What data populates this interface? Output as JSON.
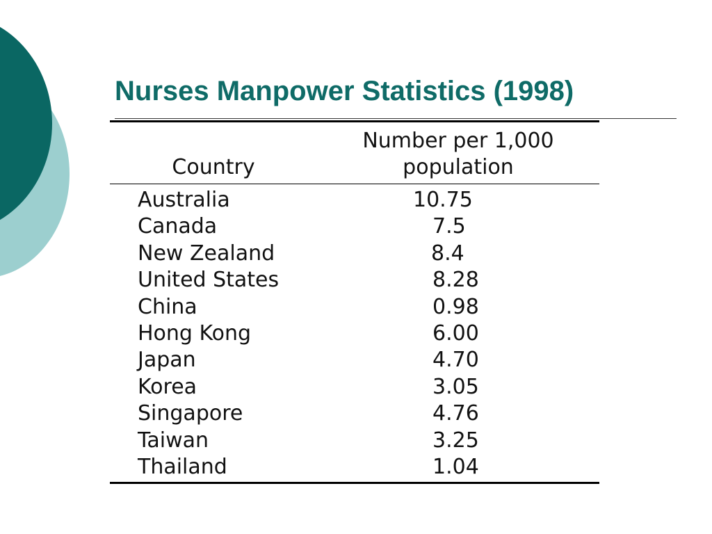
{
  "slide": {
    "title": "Nurses Manpower Statistics (1998)"
  },
  "table": {
    "headers": {
      "country": "Country",
      "value_line1": "Number per 1,000",
      "value_line2": "population"
    },
    "rows": [
      {
        "country": "Australia",
        "value": "10.75",
        "indent": 2
      },
      {
        "country": "Canada",
        "value": "7.5",
        "indent": 1
      },
      {
        "country": "New Zealand",
        "value": "8.4",
        "indent": 0
      },
      {
        "country": "United States",
        "value": "8.28",
        "indent": 1
      },
      {
        "country": "China",
        "value": "0.98",
        "indent": 1
      },
      {
        "country": "Hong Kong",
        "value": "6.00",
        "indent": 1
      },
      {
        "country": "Japan",
        "value": "4.70",
        "indent": 1
      },
      {
        "country": "Korea",
        "value": "3.05",
        "indent": 1
      },
      {
        "country": "Singapore",
        "value": "4.76",
        "indent": 1
      },
      {
        "country": "Taiwan",
        "value": "3.25",
        "indent": 1
      },
      {
        "country": "Thailand",
        "value": "1.04",
        "indent": 1
      }
    ]
  },
  "colors": {
    "title": "#0f6b67",
    "deco_dark": "#0a6763",
    "deco_light": "#9ccfcf"
  }
}
